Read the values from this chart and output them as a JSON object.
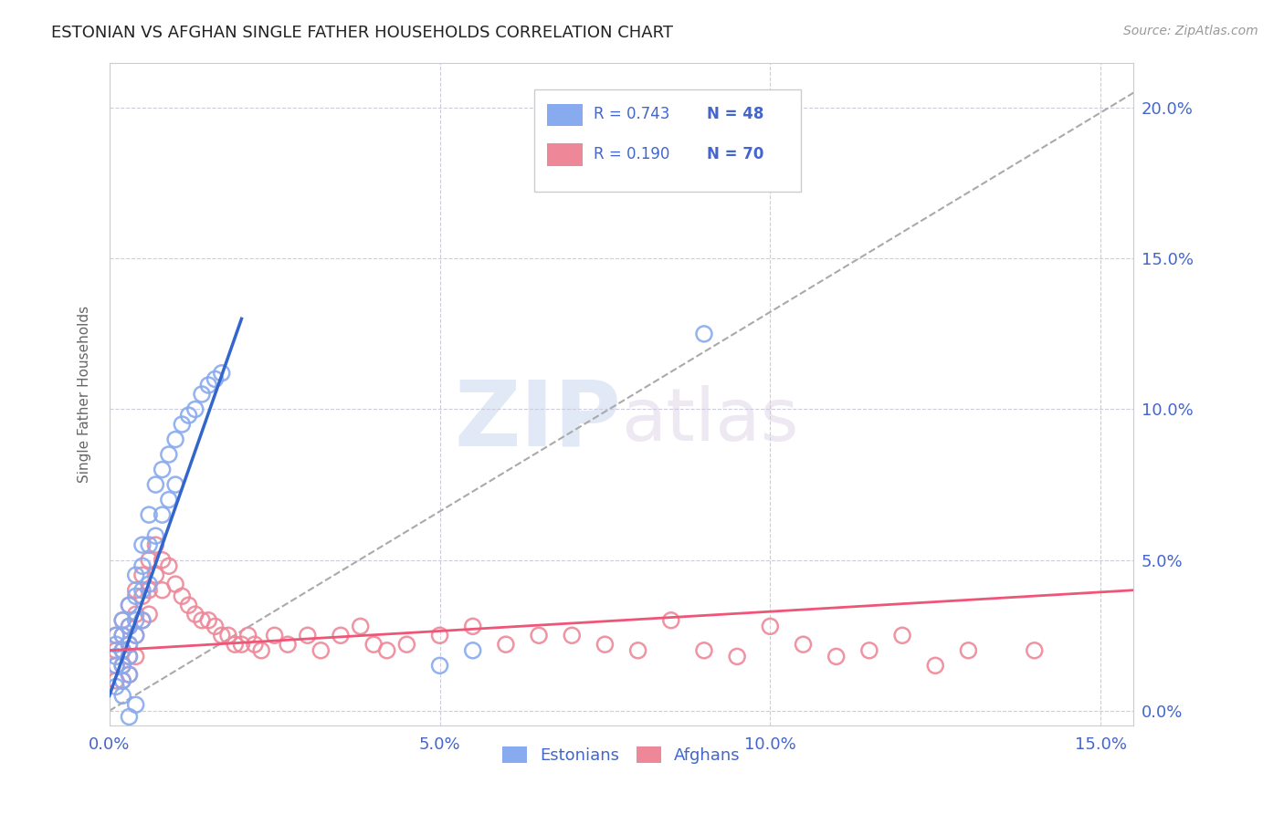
{
  "title": "ESTONIAN VS AFGHAN SINGLE FATHER HOUSEHOLDS CORRELATION CHART",
  "source": "Source: ZipAtlas.com",
  "ylabel": "Single Father Households",
  "xlim": [
    0.0,
    0.155
  ],
  "ylim": [
    -0.005,
    0.215
  ],
  "background_color": "#ffffff",
  "grid_color": "#ccccdd",
  "title_color": "#222222",
  "axis_label_color": "#4466cc",
  "blue_line_color": "#3366cc",
  "pink_line_color": "#ee5577",
  "blue_scatter_color": "#88aaee",
  "pink_scatter_color": "#ee8899",
  "diagonal_color": "#aaaaaa",
  "legend_entries": [
    {
      "label": "Estonians",
      "R": "0.743",
      "N": "48",
      "color": "#88aaee"
    },
    {
      "label": "Afghans",
      "R": "0.190",
      "N": "70",
      "color": "#ee8899"
    }
  ],
  "blue_scatter": [
    [
      0.001,
      0.025
    ],
    [
      0.001,
      0.022
    ],
    [
      0.001,
      0.018
    ],
    [
      0.001,
      0.015
    ],
    [
      0.002,
      0.03
    ],
    [
      0.002,
      0.025
    ],
    [
      0.002,
      0.02
    ],
    [
      0.002,
      0.015
    ],
    [
      0.002,
      0.01
    ],
    [
      0.003,
      0.035
    ],
    [
      0.003,
      0.028
    ],
    [
      0.003,
      0.022
    ],
    [
      0.003,
      0.018
    ],
    [
      0.003,
      0.012
    ],
    [
      0.004,
      0.045
    ],
    [
      0.004,
      0.038
    ],
    [
      0.004,
      0.03
    ],
    [
      0.004,
      0.025
    ],
    [
      0.005,
      0.055
    ],
    [
      0.005,
      0.048
    ],
    [
      0.005,
      0.04
    ],
    [
      0.005,
      0.03
    ],
    [
      0.006,
      0.065
    ],
    [
      0.006,
      0.055
    ],
    [
      0.006,
      0.042
    ],
    [
      0.007,
      0.075
    ],
    [
      0.007,
      0.058
    ],
    [
      0.008,
      0.08
    ],
    [
      0.008,
      0.065
    ],
    [
      0.009,
      0.085
    ],
    [
      0.009,
      0.07
    ],
    [
      0.01,
      0.09
    ],
    [
      0.01,
      0.075
    ],
    [
      0.011,
      0.095
    ],
    [
      0.012,
      0.098
    ],
    [
      0.013,
      0.1
    ],
    [
      0.014,
      0.105
    ],
    [
      0.015,
      0.108
    ],
    [
      0.016,
      0.11
    ],
    [
      0.017,
      0.112
    ],
    [
      0.001,
      0.008
    ],
    [
      0.002,
      0.005
    ],
    [
      0.003,
      -0.002
    ],
    [
      0.004,
      0.002
    ],
    [
      0.05,
      0.015
    ],
    [
      0.055,
      0.02
    ],
    [
      0.07,
      0.175
    ],
    [
      0.09,
      0.125
    ]
  ],
  "pink_scatter": [
    [
      0.001,
      0.025
    ],
    [
      0.001,
      0.02
    ],
    [
      0.001,
      0.015
    ],
    [
      0.001,
      0.01
    ],
    [
      0.002,
      0.03
    ],
    [
      0.002,
      0.025
    ],
    [
      0.002,
      0.02
    ],
    [
      0.002,
      0.015
    ],
    [
      0.002,
      0.01
    ],
    [
      0.003,
      0.035
    ],
    [
      0.003,
      0.028
    ],
    [
      0.003,
      0.022
    ],
    [
      0.003,
      0.018
    ],
    [
      0.003,
      0.012
    ],
    [
      0.004,
      0.04
    ],
    [
      0.004,
      0.032
    ],
    [
      0.004,
      0.025
    ],
    [
      0.004,
      0.018
    ],
    [
      0.005,
      0.045
    ],
    [
      0.005,
      0.038
    ],
    [
      0.005,
      0.03
    ],
    [
      0.006,
      0.05
    ],
    [
      0.006,
      0.04
    ],
    [
      0.006,
      0.032
    ],
    [
      0.007,
      0.055
    ],
    [
      0.007,
      0.045
    ],
    [
      0.008,
      0.05
    ],
    [
      0.008,
      0.04
    ],
    [
      0.009,
      0.048
    ],
    [
      0.01,
      0.042
    ],
    [
      0.011,
      0.038
    ],
    [
      0.012,
      0.035
    ],
    [
      0.013,
      0.032
    ],
    [
      0.014,
      0.03
    ],
    [
      0.015,
      0.03
    ],
    [
      0.016,
      0.028
    ],
    [
      0.017,
      0.025
    ],
    [
      0.018,
      0.025
    ],
    [
      0.019,
      0.022
    ],
    [
      0.02,
      0.022
    ],
    [
      0.021,
      0.025
    ],
    [
      0.022,
      0.022
    ],
    [
      0.023,
      0.02
    ],
    [
      0.025,
      0.025
    ],
    [
      0.027,
      0.022
    ],
    [
      0.03,
      0.025
    ],
    [
      0.032,
      0.02
    ],
    [
      0.035,
      0.025
    ],
    [
      0.038,
      0.028
    ],
    [
      0.04,
      0.022
    ],
    [
      0.042,
      0.02
    ],
    [
      0.045,
      0.022
    ],
    [
      0.05,
      0.025
    ],
    [
      0.055,
      0.028
    ],
    [
      0.06,
      0.022
    ],
    [
      0.065,
      0.025
    ],
    [
      0.07,
      0.025
    ],
    [
      0.075,
      0.022
    ],
    [
      0.08,
      0.02
    ],
    [
      0.085,
      0.03
    ],
    [
      0.09,
      0.02
    ],
    [
      0.095,
      0.018
    ],
    [
      0.1,
      0.028
    ],
    [
      0.105,
      0.022
    ],
    [
      0.11,
      0.018
    ],
    [
      0.115,
      0.02
    ],
    [
      0.12,
      0.025
    ],
    [
      0.125,
      0.015
    ],
    [
      0.13,
      0.02
    ],
    [
      0.14,
      0.02
    ]
  ],
  "blue_line_x": [
    0.0,
    0.02
  ],
  "blue_line_y": [
    0.005,
    0.13
  ],
  "pink_line_x": [
    0.0,
    0.155
  ],
  "pink_line_y": [
    0.02,
    0.04
  ],
  "diag_line_x": [
    0.0,
    0.155
  ],
  "diag_line_y": [
    0.0,
    0.205
  ]
}
